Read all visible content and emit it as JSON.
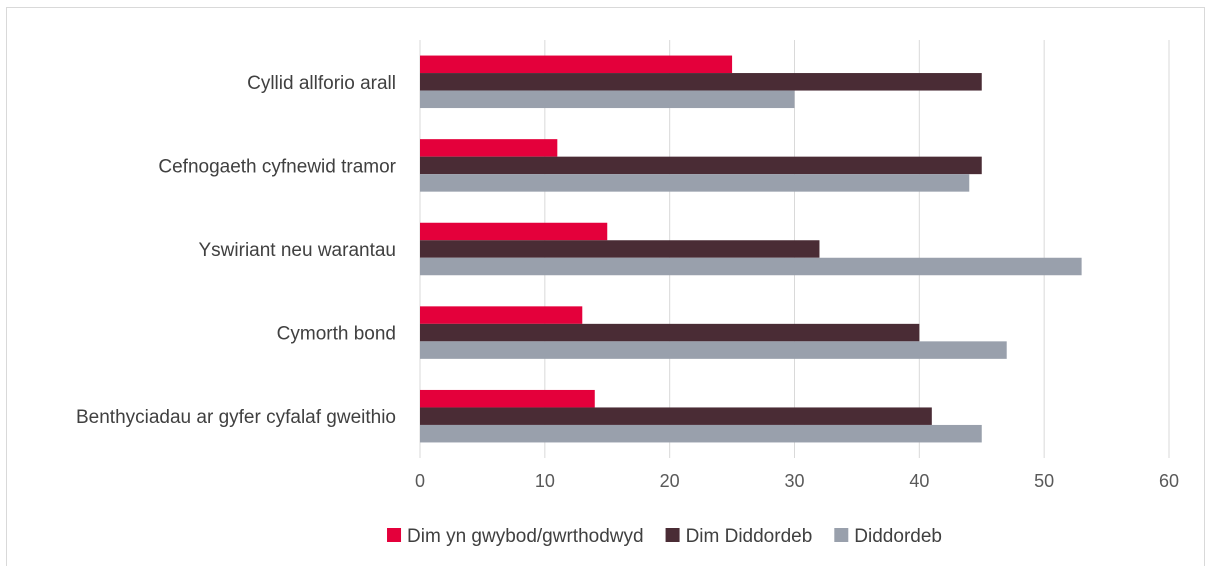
{
  "chart_data": {
    "type": "bar",
    "orientation": "horizontal",
    "categories": [
      "Cyllid allforio arall",
      "Cefnogaeth cyfnewid tramor",
      "Yswiriant neu warantau",
      "Cymorth bond",
      "Benthyciadau ar gyfer cyfalaf gweithio"
    ],
    "series": [
      {
        "name": "Dim yn gwybod/gwrthodwyd",
        "color": "#e4003b",
        "values": [
          25,
          11,
          15,
          13,
          14
        ]
      },
      {
        "name": "Dim Diddordeb",
        "color": "#4a2c35",
        "values": [
          45,
          45,
          32,
          40,
          41
        ]
      },
      {
        "name": "Diddordeb",
        "color": "#99a0ac",
        "values": [
          30,
          44,
          53,
          47,
          45
        ]
      }
    ],
    "xlim": [
      0,
      60
    ],
    "x_ticks": [
      0,
      10,
      20,
      30,
      40,
      50,
      60
    ],
    "grid": true,
    "legend_position": "bottom"
  }
}
